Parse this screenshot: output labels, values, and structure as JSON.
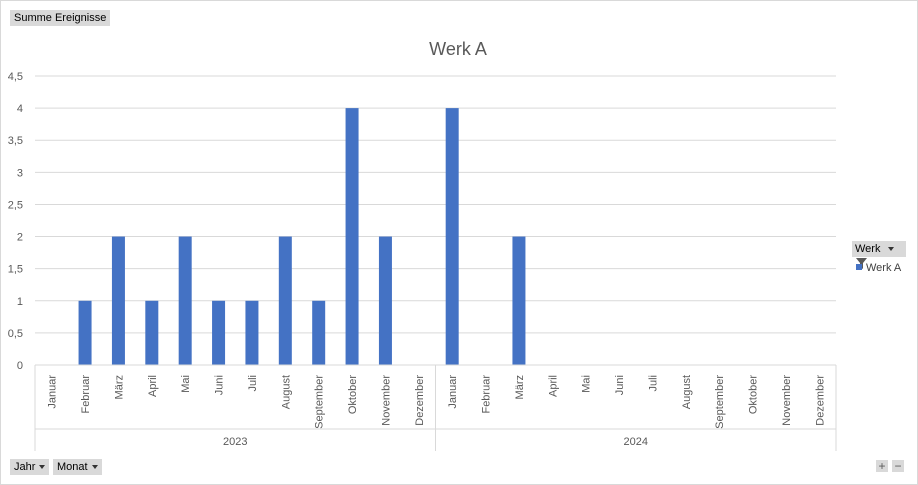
{
  "field_buttons": {
    "values": "Summe Ereignisse",
    "jahr": "Jahr",
    "monat": "Monat"
  },
  "legend": {
    "filter_label": "Werk",
    "item": "Werk A"
  },
  "zoom": {
    "plus": "+",
    "minus": "−"
  },
  "colors": {
    "bar": "#4472c4",
    "grid": "#d9d9d9",
    "text": "#595959"
  },
  "chart_data": {
    "type": "bar",
    "title": "Werk A",
    "xlabel": "",
    "ylabel": "",
    "ylim": [
      0,
      4.5
    ],
    "yticks": [
      "0",
      "0,5",
      "1",
      "1,5",
      "2",
      "2,5",
      "3",
      "3,5",
      "4",
      "4,5"
    ],
    "groups": [
      {
        "label": "2023",
        "categories": [
          "Januar",
          "Februar",
          "März",
          "April",
          "Mai",
          "Juni",
          "Juli",
          "August",
          "September",
          "Oktober",
          "November",
          "Dezember"
        ],
        "values": [
          0,
          1,
          2,
          1,
          2,
          1,
          1,
          2,
          1,
          4,
          2,
          0
        ]
      },
      {
        "label": "2024",
        "categories": [
          "Januar",
          "Februar",
          "März",
          "April",
          "Mai",
          "Juni",
          "Juli",
          "August",
          "September",
          "Oktober",
          "November",
          "Dezember"
        ],
        "values": [
          4,
          0,
          2,
          0,
          0,
          0,
          0,
          0,
          0,
          0,
          0,
          0
        ]
      }
    ],
    "series": [
      {
        "name": "Werk A"
      }
    ],
    "legend": "right",
    "grid": true
  }
}
